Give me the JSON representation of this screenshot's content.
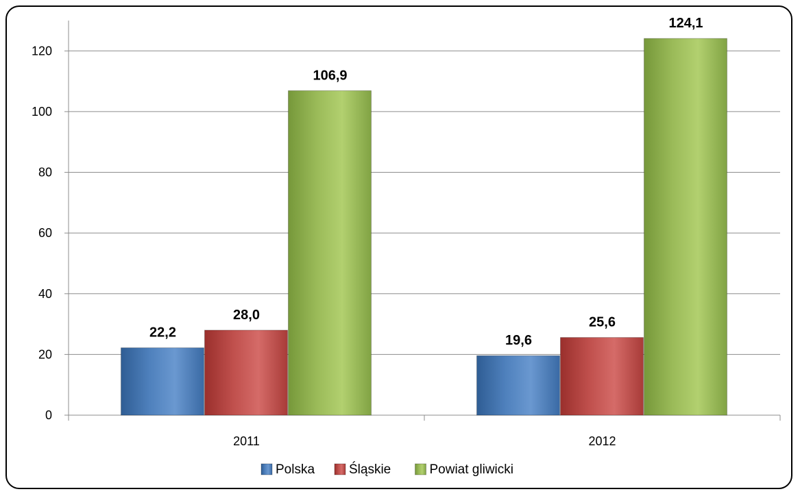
{
  "chart_data": {
    "type": "bar",
    "categories": [
      "2011",
      "2012"
    ],
    "series": [
      {
        "name": "Polska",
        "values": [
          22.2,
          19.6
        ],
        "labels": [
          "22,2",
          "19,6"
        ],
        "color": "#4F81BD"
      },
      {
        "name": "Śląskie",
        "values": [
          28.0,
          25.6
        ],
        "labels": [
          "28,0",
          "25,6"
        ],
        "color": "#C0504D"
      },
      {
        "name": "Powiat gliwicki",
        "values": [
          106.9,
          124.1
        ],
        "labels": [
          "106,9",
          "124,1"
        ],
        "color": "#9BBB59"
      }
    ],
    "ylim": [
      0,
      120
    ],
    "ymax": 130,
    "yticks": [
      0,
      20,
      40,
      60,
      80,
      100,
      120
    ],
    "grid": true,
    "legend": "bottom",
    "title": "",
    "xlabel": "",
    "ylabel": ""
  }
}
